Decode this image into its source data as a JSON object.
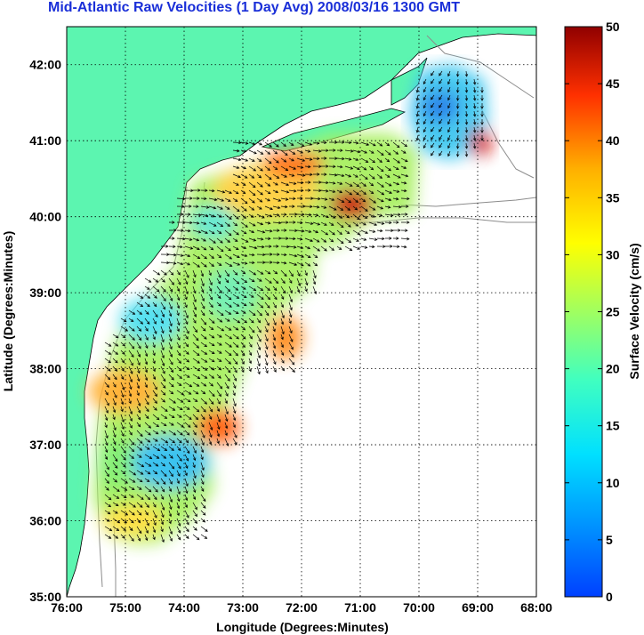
{
  "title": "Mid-Atlantic Raw Velocities (1 Day Avg) 2008/03/16 1300 GMT",
  "axes": {
    "xlabel": "Longitude (Degrees:Minutes)",
    "ylabel": "Latitude (Degrees:Minutes)",
    "xticks": [
      "76:00",
      "75:00",
      "74:00",
      "73:00",
      "72:00",
      "71:00",
      "70:00",
      "69:00",
      "68:00"
    ],
    "yticks": [
      "35:00",
      "36:00",
      "37:00",
      "38:00",
      "39:00",
      "40:00",
      "41:00",
      "42:00"
    ],
    "xlim": [
      -76,
      -68
    ],
    "ylim": [
      35,
      42.5
    ],
    "grid": true
  },
  "colorbar": {
    "label": "Surface Velocity (cm/s)",
    "ticks": [
      "0",
      "5",
      "10",
      "15",
      "20",
      "25",
      "30",
      "35",
      "40",
      "45",
      "50"
    ],
    "range": [
      0,
      50
    ],
    "colormap": "jet"
  },
  "colors": {
    "land": "#5cf5b0",
    "ocean": "#ffffff",
    "title": "#1a2fd8",
    "arrows": "#000000",
    "bathymetry": "#8c8c8c"
  }
}
